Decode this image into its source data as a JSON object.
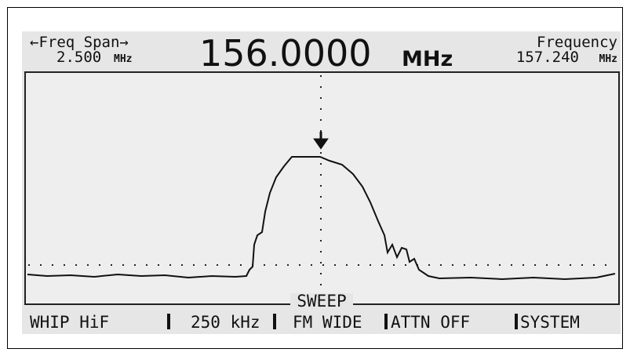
{
  "header": {
    "span_label": "←Freq Span→",
    "span_value": "2.500",
    "span_unit": "MHz",
    "center_value": "156.0000",
    "center_unit": "MHz",
    "freq_label": "Frequency",
    "freq_value": "157.240",
    "freq_unit": "MHz"
  },
  "graph": {
    "label": "SWEEP"
  },
  "softkeys": [
    "WHIP HiF",
    "250 kHz",
    "FM WIDE",
    "ATTN OFF",
    "SYSTEM"
  ]
}
